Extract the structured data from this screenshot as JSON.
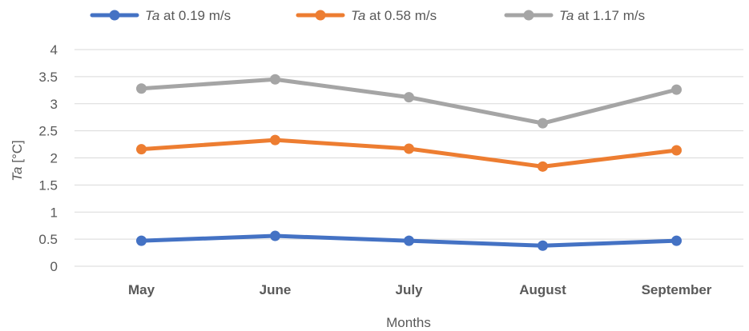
{
  "chart_data": {
    "type": "line",
    "categories": [
      "May",
      "June",
      "July",
      "August",
      "September"
    ],
    "series": [
      {
        "name": "Ta at 0.19 m/s",
        "name_symbol": "Ta",
        "name_rest": " at 0.19 m/s",
        "color": "#4472C4",
        "values": [
          0.47,
          0.56,
          0.47,
          0.38,
          0.47
        ]
      },
      {
        "name": "Ta at 0.58 m/s",
        "name_symbol": "Ta",
        "name_rest": " at 0.58 m/s",
        "color": "#ED7D31",
        "values": [
          2.16,
          2.33,
          2.17,
          1.84,
          2.14
        ]
      },
      {
        "name": "Ta at 1.17 m/s",
        "name_symbol": "Ta",
        "name_rest": " at 1.17 m/s",
        "color": "#A5A5A5",
        "values": [
          3.28,
          3.45,
          3.12,
          2.64,
          3.26
        ]
      }
    ],
    "xlabel": "Months",
    "ylabel_symbol": "Ta",
    "ylabel_unit": " [°C]",
    "ylim": [
      0,
      4
    ],
    "yticks": [
      "0",
      "0.5",
      "1",
      "1.5",
      "2",
      "2.5",
      "3",
      "3.5",
      "4"
    ],
    "grid": true,
    "legend_position": "top"
  }
}
